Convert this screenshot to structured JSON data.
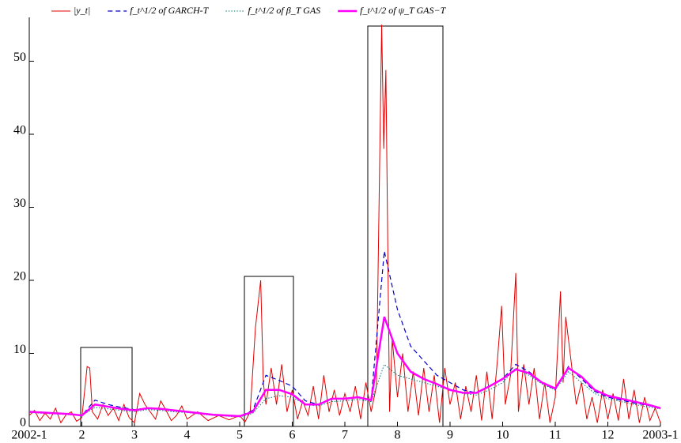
{
  "chart_data": {
    "type": "line",
    "xlim": [
      1,
      13
    ],
    "ylim": [
      0,
      56
    ],
    "xticks": [
      {
        "value": 1,
        "label": "2002-1"
      },
      2,
      3,
      4,
      5,
      6,
      7,
      8,
      9,
      10,
      11,
      12,
      {
        "value": 13,
        "label": "2003-1"
      }
    ],
    "yticks": [
      0,
      10,
      20,
      30,
      40,
      50
    ],
    "series": [
      {
        "name": "|y_t|",
        "color": "#e00000",
        "width": 1,
        "dash": "none",
        "x": [
          1.0,
          1.1,
          1.2,
          1.3,
          1.4,
          1.5,
          1.6,
          1.7,
          1.8,
          1.9,
          2.0,
          2.1,
          2.15,
          2.2,
          2.3,
          2.4,
          2.5,
          2.6,
          2.7,
          2.8,
          2.9,
          3.0,
          3.1,
          3.2,
          3.3,
          3.4,
          3.5,
          3.6,
          3.7,
          3.8,
          3.9,
          4.0,
          4.2,
          4.4,
          4.6,
          4.8,
          5.0,
          5.1,
          5.2,
          5.3,
          5.4,
          5.45,
          5.5,
          5.6,
          5.7,
          5.8,
          5.9,
          6.0,
          6.1,
          6.2,
          6.3,
          6.4,
          6.5,
          6.6,
          6.7,
          6.8,
          6.9,
          7.0,
          7.1,
          7.2,
          7.3,
          7.4,
          7.5,
          7.6,
          7.7,
          7.74,
          7.78,
          7.85,
          7.9,
          8.0,
          8.1,
          8.2,
          8.3,
          8.4,
          8.5,
          8.6,
          8.7,
          8.8,
          8.9,
          9.0,
          9.1,
          9.2,
          9.3,
          9.4,
          9.5,
          9.6,
          9.7,
          9.8,
          9.9,
          9.98,
          10.05,
          10.15,
          10.25,
          10.3,
          10.4,
          10.5,
          10.6,
          10.7,
          10.8,
          10.9,
          11.0,
          11.1,
          11.15,
          11.2,
          11.3,
          11.4,
          11.5,
          11.6,
          11.7,
          11.8,
          11.9,
          12.0,
          12.1,
          12.2,
          12.3,
          12.4,
          12.5,
          12.6,
          12.7,
          12.8,
          12.9,
          13.0
        ],
        "values": [
          1.5,
          2.2,
          0.8,
          1.8,
          1.0,
          2.5,
          0.5,
          1.6,
          2.0,
          0.7,
          1.2,
          8.2,
          8.0,
          2.0,
          1.0,
          3.0,
          1.5,
          2.5,
          0.8,
          3.0,
          1.2,
          0.5,
          4.5,
          3.0,
          2.0,
          1.0,
          3.5,
          2.2,
          0.8,
          1.5,
          2.8,
          1.0,
          2.0,
          0.8,
          1.5,
          0.9,
          1.5,
          0.6,
          2.0,
          13.5,
          20.0,
          6.0,
          3.0,
          8.0,
          3.0,
          8.5,
          2.0,
          5.0,
          1.0,
          3.5,
          1.5,
          5.5,
          1.0,
          7.0,
          2.0,
          5.0,
          1.5,
          4.5,
          2.0,
          5.5,
          1.0,
          6.0,
          2.0,
          5.5,
          55.0,
          38.0,
          48.8,
          2.0,
          12.0,
          4.0,
          10.0,
          2.0,
          7.5,
          1.5,
          8.0,
          2.0,
          7.0,
          0.5,
          8.0,
          3.0,
          6.0,
          1.0,
          5.5,
          2.0,
          7.0,
          0.8,
          7.5,
          1.0,
          9.0,
          16.5,
          3.0,
          7.0,
          21.0,
          2.0,
          8.5,
          3.0,
          8.0,
          1.0,
          6.0,
          0.5,
          4.0,
          18.5,
          6.0,
          15.0,
          9.0,
          3.0,
          6.0,
          1.0,
          4.0,
          0.5,
          5.0,
          1.0,
          4.5,
          0.8,
          6.5,
          1.0,
          5.0,
          0.5,
          4.0,
          0.8,
          2.5,
          0.5
        ]
      },
      {
        "name": "f_t^1/2 of GARCH-T",
        "color": "#0000cc",
        "width": 1.2,
        "dash": "6 4",
        "x": [
          1,
          1.25,
          1.5,
          1.75,
          2,
          2.25,
          2.5,
          2.75,
          3,
          3.25,
          3.5,
          3.75,
          4,
          4.25,
          4.5,
          4.75,
          5,
          5.25,
          5.5,
          5.75,
          6,
          6.25,
          6.5,
          6.75,
          7,
          7.25,
          7.5,
          7.75,
          8,
          8.25,
          8.5,
          8.75,
          9,
          9.25,
          9.5,
          9.75,
          10,
          10.25,
          10.5,
          10.75,
          11,
          11.25,
          11.5,
          11.75,
          12,
          12.25,
          12.5,
          12.75,
          13
        ],
        "values": [
          2.0,
          1.9,
          1.8,
          1.7,
          1.5,
          3.6,
          3.0,
          2.6,
          2.3,
          2.5,
          2.4,
          2.2,
          2.0,
          1.8,
          1.6,
          1.5,
          1.4,
          2.2,
          7.0,
          6.3,
          5.5,
          3.5,
          3.0,
          3.8,
          3.8,
          4.0,
          3.6,
          24.0,
          16.0,
          11.0,
          9.0,
          7.0,
          6.0,
          5.0,
          4.6,
          5.5,
          6.5,
          8.5,
          7.5,
          6.0,
          5.0,
          8.2,
          6.5,
          4.8,
          4.0,
          3.6,
          3.2,
          2.9,
          2.5
        ]
      },
      {
        "name": "f_t^1/2 of β_T GAS",
        "color": "#007a7a",
        "width": 1,
        "dash": "1.5 2",
        "x": [
          1,
          1.25,
          1.5,
          1.75,
          2,
          2.25,
          2.5,
          2.75,
          3,
          3.25,
          3.5,
          3.75,
          4,
          4.25,
          4.5,
          4.75,
          5,
          5.25,
          5.5,
          5.75,
          6,
          6.25,
          6.5,
          6.75,
          7,
          7.25,
          7.5,
          7.75,
          8,
          8.25,
          8.5,
          8.75,
          9,
          9.25,
          9.5,
          9.75,
          10,
          10.25,
          10.5,
          10.75,
          11,
          11.25,
          11.5,
          11.75,
          12,
          12.25,
          12.5,
          12.75,
          13
        ],
        "values": [
          1.9,
          1.8,
          1.7,
          1.6,
          1.5,
          2.6,
          2.4,
          2.2,
          2.0,
          2.3,
          2.2,
          2.0,
          1.9,
          1.7,
          1.5,
          1.4,
          1.3,
          1.8,
          3.8,
          4.2,
          4.0,
          3.0,
          2.8,
          3.4,
          3.5,
          3.7,
          3.4,
          8.5,
          7.0,
          6.5,
          6.0,
          5.5,
          5.0,
          4.5,
          4.3,
          5.0,
          6.0,
          8.0,
          7.0,
          5.8,
          5.0,
          7.5,
          6.0,
          4.5,
          3.8,
          3.4,
          3.0,
          2.7,
          2.4
        ]
      },
      {
        "name": "f_t^1/2 of ψ_T GAS−T",
        "color": "#ff00ff",
        "width": 2.5,
        "dash": "none",
        "x": [
          1,
          1.25,
          1.5,
          1.75,
          2,
          2.25,
          2.5,
          2.75,
          3,
          3.25,
          3.5,
          3.75,
          4,
          4.25,
          4.5,
          4.75,
          5,
          5.25,
          5.5,
          5.75,
          6,
          6.25,
          6.5,
          6.75,
          7,
          7.25,
          7.5,
          7.75,
          8,
          8.25,
          8.5,
          8.75,
          9,
          9.25,
          9.5,
          9.75,
          10,
          10.25,
          10.5,
          10.75,
          11,
          11.25,
          11.5,
          11.75,
          12,
          12.25,
          12.5,
          12.75,
          13
        ],
        "values": [
          2.0,
          1.9,
          1.8,
          1.7,
          1.5,
          3.0,
          2.7,
          2.4,
          2.2,
          2.5,
          2.4,
          2.2,
          2.0,
          1.8,
          1.6,
          1.5,
          1.4,
          2.0,
          5.0,
          5.0,
          4.4,
          3.0,
          3.0,
          3.8,
          3.8,
          4.0,
          3.6,
          15.0,
          10.0,
          7.5,
          6.5,
          5.8,
          5.0,
          4.6,
          4.6,
          5.5,
          6.5,
          7.8,
          7.3,
          6.0,
          5.2,
          8.0,
          6.8,
          5.0,
          4.2,
          3.8,
          3.4,
          3.0,
          2.5
        ]
      }
    ]
  }
}
